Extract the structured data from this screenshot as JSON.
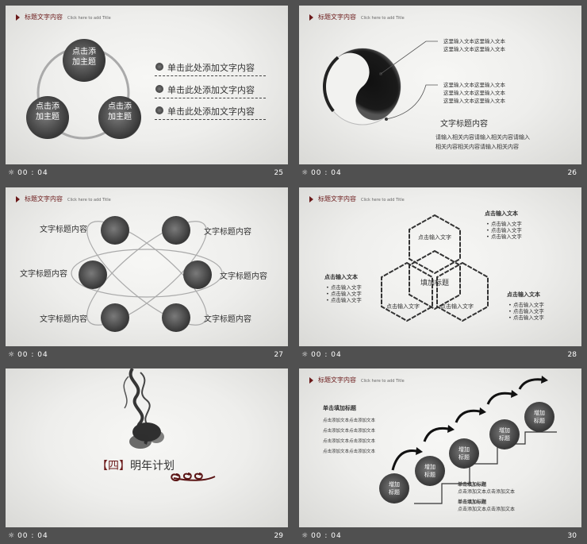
{
  "common": {
    "title_cn": "标题文字内容",
    "title_en": "Click here to add Title",
    "time": "00 : 04"
  },
  "slides": [
    {
      "num": "25",
      "circles": [
        "点击添加主题",
        "点击添加主题",
        "点击添加主题"
      ],
      "items": [
        "单击此处添加文字内容",
        "单击此处添加文字内容",
        "单击此处添加文字内容"
      ]
    },
    {
      "num": "26",
      "lines": [
        "这里输入文本这里输入文本",
        "这里输入文本这里输入文本",
        "这里输入文本这里输入文本",
        "这里输入文本这里输入文本",
        "这里输入文本这里输入文本",
        "这里输入文本这里输入文本"
      ],
      "heading": "文字标题内容",
      "body1": "请输入相关内容请输入相关内容请输入",
      "body2": "相关内容相关内容请输入相关内容"
    },
    {
      "num": "27",
      "labels": [
        "文字标题内容",
        "文字标题内容",
        "文字标题内容",
        "文字标题内容",
        "文字标题内容",
        "文字标题内容"
      ]
    },
    {
      "num": "28",
      "center": "填加标题",
      "hex_labels": [
        "点击输入文字",
        "点击输入文字",
        "点击输入文字"
      ],
      "groups": [
        {
          "title": "点击输入文本",
          "items": [
            "点击输入文字",
            "点击输入文字",
            "点击输入文字"
          ]
        },
        {
          "title": "点击输入文本",
          "items": [
            "点击输入文字",
            "点击输入文字",
            "点击输入文字"
          ]
        },
        {
          "title": "点击输入文本",
          "items": [
            "点击输入文字",
            "点击输入文字",
            "点击输入文字"
          ]
        }
      ]
    },
    {
      "num": "29",
      "bracket_num": "【四】",
      "title": "明年计划"
    },
    {
      "num": "30",
      "block_title": "单击填加标题",
      "block_lines": [
        "点击添加文本点击添加文本",
        "点击添加文本点击添加文本",
        "点击添加文本点击添加文本",
        "点击添加文本点击添加文本"
      ],
      "steps": [
        "增加标题",
        "增加标题",
        "增加标题",
        "增加标题",
        "增加标题"
      ],
      "sub1_title": "单击填加标题",
      "sub1_line": "点击添加文本点击添加文本",
      "sub2_title": "单击填加标题",
      "sub2_line": "点击添加文本点击添加文本"
    }
  ]
}
